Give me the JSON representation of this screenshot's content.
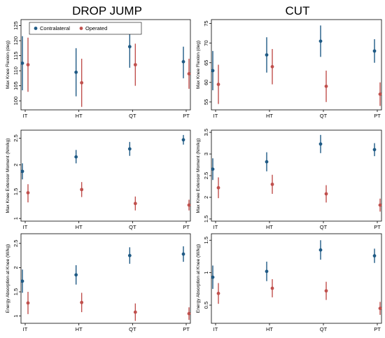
{
  "column_titles": [
    "DROP JUMP",
    "CUT"
  ],
  "legend": {
    "items": [
      {
        "label": "Contralateral",
        "color": "#1f5a85"
      },
      {
        "label": "Operated",
        "color": "#c0504d"
      }
    ]
  },
  "colors": {
    "contralateral": "#1f5a85",
    "operated": "#c0504d"
  },
  "chart_data": [
    {
      "type": "scatter",
      "subtype": "errorbar",
      "column": "DROP JUMP",
      "ylabel": "Max Knee Flexion (deg)",
      "categories": [
        "IT",
        "HT",
        "QT",
        "PT"
      ],
      "ylim": [
        97,
        127
      ],
      "yticks": [
        100,
        105,
        110,
        115,
        120,
        125
      ],
      "series": [
        {
          "name": "Contralateral",
          "mean": [
            112.5,
            109.5,
            118,
            113
          ],
          "lower": [
            103.5,
            101.5,
            111,
            107.5
          ],
          "upper": [
            121.5,
            117.5,
            125,
            118
          ]
        },
        {
          "name": "Operated",
          "mean": [
            112,
            106,
            112,
            109
          ],
          "lower": [
            103,
            98,
            105,
            104
          ],
          "upper": [
            121,
            114,
            119,
            114
          ]
        }
      ]
    },
    {
      "type": "scatter",
      "subtype": "errorbar",
      "column": "CUT",
      "ylabel": "Max Knee Flexion (deg)",
      "categories": [
        "IT",
        "HT",
        "QT",
        "PT"
      ],
      "ylim": [
        53,
        76
      ],
      "yticks": [
        55,
        60,
        65,
        70,
        75
      ],
      "series": [
        {
          "name": "Contralateral",
          "mean": [
            63,
            67,
            70.5,
            68
          ],
          "lower": [
            58,
            62.5,
            66.5,
            65
          ],
          "upper": [
            68,
            71.5,
            74.5,
            71
          ]
        },
        {
          "name": "Operated",
          "mean": [
            59.5,
            64,
            59,
            57
          ],
          "lower": [
            54.5,
            59.5,
            55,
            54
          ],
          "upper": [
            64.5,
            68.5,
            63,
            60
          ]
        }
      ]
    },
    {
      "type": "scatter",
      "subtype": "errorbar",
      "column": "DROP JUMP",
      "ylabel": "Max Knee Extensor Moment (Nm/kg)",
      "categories": [
        "IT",
        "HT",
        "QT",
        "PT"
      ],
      "ylim": [
        0.95,
        2.65
      ],
      "yticks": [
        1,
        1.5,
        2,
        2.5
      ],
      "series": [
        {
          "name": "Contralateral",
          "mean": [
            1.88,
            2.15,
            2.3,
            2.47
          ],
          "lower": [
            1.73,
            2.03,
            2.17,
            2.38
          ],
          "upper": [
            2.03,
            2.28,
            2.43,
            2.56
          ]
        },
        {
          "name": "Operated",
          "mean": [
            1.48,
            1.54,
            1.28,
            1.25
          ],
          "lower": [
            1.3,
            1.4,
            1.15,
            1.15
          ],
          "upper": [
            1.64,
            1.68,
            1.41,
            1.35
          ]
        }
      ]
    },
    {
      "type": "scatter",
      "subtype": "errorbar",
      "column": "CUT",
      "ylabel": "Max Knee Extensor Moment (Nm/kg)",
      "categories": [
        "IT",
        "HT",
        "QT",
        "PT"
      ],
      "ylim": [
        1.45,
        3.55
      ],
      "yticks": [
        1.5,
        2,
        2.5,
        3,
        3.5
      ],
      "series": [
        {
          "name": "Contralateral",
          "mean": [
            2.65,
            2.82,
            3.23,
            3.1
          ],
          "lower": [
            2.4,
            2.6,
            3.02,
            2.95
          ],
          "upper": [
            2.9,
            3.04,
            3.44,
            3.25
          ]
        },
        {
          "name": "Operated",
          "mean": [
            2.22,
            2.3,
            2.08,
            1.82
          ],
          "lower": [
            1.98,
            2.08,
            1.88,
            1.67
          ],
          "upper": [
            2.46,
            2.52,
            2.28,
            1.97
          ]
        }
      ]
    },
    {
      "type": "scatter",
      "subtype": "errorbar",
      "column": "DROP JUMP",
      "ylabel": "Energy Absorption at Knee (W/kg)",
      "categories": [
        "IT",
        "HT",
        "QT",
        "PT"
      ],
      "ylim": [
        0.85,
        2.7
      ],
      "yticks": [
        1,
        1.5,
        2,
        2.5
      ],
      "series": [
        {
          "name": "Contralateral",
          "mean": [
            1.72,
            1.85,
            2.25,
            2.28
          ],
          "lower": [
            1.48,
            1.65,
            2.08,
            2.12
          ],
          "upper": [
            1.96,
            2.05,
            2.42,
            2.44
          ]
        },
        {
          "name": "Operated",
          "mean": [
            1.27,
            1.28,
            1.08,
            1.05
          ],
          "lower": [
            1.04,
            1.08,
            0.9,
            0.92
          ],
          "upper": [
            1.5,
            1.48,
            1.26,
            1.18
          ]
        }
      ]
    },
    {
      "type": "scatter",
      "subtype": "errorbar",
      "column": "CUT",
      "ylabel": "Energy Absorption at Knee (W/kg)",
      "categories": [
        "IT",
        "HT",
        "QT",
        "PT"
      ],
      "ylim": [
        0.22,
        1.6
      ],
      "yticks": [
        0.5,
        1,
        1.5
      ],
      "series": [
        {
          "name": "Contralateral",
          "mean": [
            0.93,
            1.02,
            1.35,
            1.26
          ],
          "lower": [
            0.75,
            0.87,
            1.2,
            1.15
          ],
          "upper": [
            1.11,
            1.17,
            1.5,
            1.37
          ]
        },
        {
          "name": "Operated",
          "mean": [
            0.68,
            0.76,
            0.72,
            0.45
          ],
          "lower": [
            0.52,
            0.62,
            0.58,
            0.35
          ],
          "upper": [
            0.84,
            0.9,
            0.86,
            0.55
          ]
        }
      ]
    }
  ]
}
